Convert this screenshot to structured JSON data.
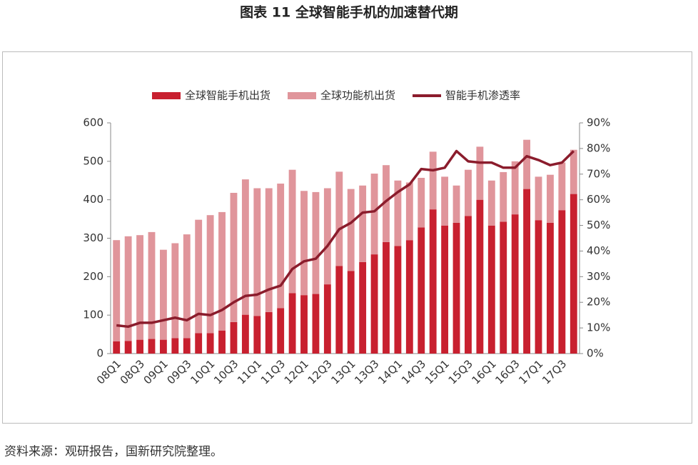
{
  "title": "图表 11 全球智能手机的加速替代期",
  "source": "资料来源：观研报告，国新研究院整理。",
  "chart_data": {
    "type": "bar",
    "stacked": true,
    "categories": [
      "08Q1",
      null,
      "08Q3",
      null,
      "09Q1",
      null,
      "09Q3",
      null,
      "10Q1",
      null,
      "10Q3",
      null,
      "11Q1",
      null,
      "11Q3",
      null,
      "12Q1",
      null,
      "12Q3",
      null,
      "13Q1",
      null,
      "13Q3",
      null,
      "14Q1",
      null,
      "14Q3",
      null,
      "15Q1",
      null,
      "15Q3",
      null,
      "16Q1",
      null,
      "16Q3",
      null,
      "17Q1",
      null,
      "17Q3",
      null
    ],
    "series": [
      {
        "name": "全球智能手机出货",
        "type": "bar",
        "color": "#c8202f",
        "values": [
          32,
          33,
          36,
          38,
          36,
          40,
          40,
          53,
          53,
          60,
          82,
          101,
          98,
          108,
          118,
          157,
          152,
          155,
          180,
          228,
          215,
          238,
          258,
          290,
          280,
          295,
          328,
          375,
          333,
          340,
          358,
          400,
          333,
          343,
          362,
          428,
          347,
          340,
          373,
          415
        ]
      },
      {
        "name": "全球功能机出货",
        "type": "bar",
        "color": "#e0959b",
        "values": [
          263,
          272,
          272,
          278,
          234,
          247,
          270,
          295,
          307,
          308,
          336,
          352,
          332,
          322,
          324,
          321,
          271,
          265,
          250,
          245,
          213,
          199,
          210,
          200,
          170,
          150,
          129,
          150,
          127,
          97,
          120,
          138,
          117,
          129,
          138,
          128,
          113,
          125,
          124,
          115
        ]
      },
      {
        "name": "智能手机渗透率",
        "type": "line",
        "axis": "y2",
        "color": "#8b1c2c",
        "values": [
          11,
          10.5,
          12,
          12,
          13,
          14,
          13,
          15.5,
          15,
          17,
          20,
          22.5,
          23,
          25,
          26.5,
          33,
          36,
          37,
          42,
          48.5,
          51,
          55,
          55.5,
          59.5,
          63,
          66,
          72,
          71.5,
          72.5,
          79,
          75,
          74.5,
          74.5,
          72.5,
          72.5,
          77,
          75.5,
          73.5,
          74.5,
          79
        ]
      }
    ],
    "ylim": [
      0,
      600
    ],
    "yticks": [
      0,
      100,
      200,
      300,
      400,
      500,
      600
    ],
    "y2lim": [
      0,
      90
    ],
    "y2ticks": [
      {
        "value": 0,
        "label": "0%"
      },
      {
        "value": 10,
        "label": "10%"
      },
      {
        "value": 20,
        "label": "20%"
      },
      {
        "value": 30,
        "label": "30%"
      },
      {
        "value": 40,
        "label": "40%"
      },
      {
        "value": 50,
        "label": "50%"
      },
      {
        "value": 60,
        "label": "60%"
      },
      {
        "value": 70,
        "label": "70%"
      },
      {
        "value": 80,
        "label": "80%"
      },
      {
        "value": 90,
        "label": "90%"
      }
    ],
    "legend": "top",
    "grid": false
  }
}
